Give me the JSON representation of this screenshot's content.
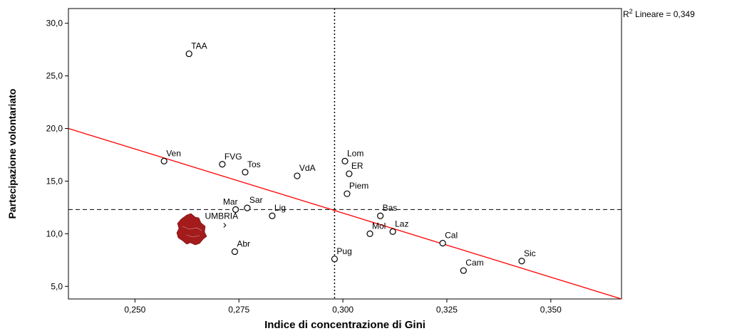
{
  "chart_data": {
    "type": "scatter",
    "xlabel": "Indice di concentrazione di Gini",
    "ylabel": "Partecipazione volontariato",
    "xlim": [
      0.234,
      0.367
    ],
    "ylim": [
      3.8,
      31.4
    ],
    "xticks": [
      0.25,
      0.275,
      0.3,
      0.325,
      0.35
    ],
    "xtick_labels": [
      "0,250",
      "0,275",
      "0,300",
      "0,325",
      "0,350"
    ],
    "yticks": [
      5,
      10,
      15,
      20,
      25,
      30
    ],
    "ytick_labels": [
      "5,0",
      "10,0",
      "15,0",
      "20,0",
      "25,0",
      "30,0"
    ],
    "grid": false,
    "points": [
      {
        "label": "TAA",
        "x": 0.263,
        "y": 27.1
      },
      {
        "label": "Ven",
        "x": 0.257,
        "y": 16.9
      },
      {
        "label": "FVG",
        "x": 0.271,
        "y": 16.6
      },
      {
        "label": "Tos",
        "x": 0.2765,
        "y": 15.85
      },
      {
        "label": "VdA",
        "x": 0.289,
        "y": 15.5
      },
      {
        "label": "Lom",
        "x": 0.3005,
        "y": 16.9
      },
      {
        "label": "ER",
        "x": 0.3015,
        "y": 15.7
      },
      {
        "label": "Piem",
        "x": 0.301,
        "y": 13.8
      },
      {
        "label": "Mar",
        "x": 0.2742,
        "y": 12.3
      },
      {
        "label": "Sar",
        "x": 0.277,
        "y": 12.45
      },
      {
        "label": "Lig",
        "x": 0.283,
        "y": 11.7
      },
      {
        "label": "Bas",
        "x": 0.309,
        "y": 11.7
      },
      {
        "label": "UMBRIA",
        "x": 0.2715,
        "y": 10.8
      },
      {
        "label": "Laz",
        "x": 0.312,
        "y": 10.2
      },
      {
        "label": "Mol",
        "x": 0.3065,
        "y": 10.0
      },
      {
        "label": "Cal",
        "x": 0.324,
        "y": 9.1
      },
      {
        "label": "Abr",
        "x": 0.274,
        "y": 8.3
      },
      {
        "label": "Pug",
        "x": 0.298,
        "y": 7.6
      },
      {
        "label": "Sic",
        "x": 0.343,
        "y": 7.4
      },
      {
        "label": "Cam",
        "x": 0.329,
        "y": 6.5
      }
    ],
    "fit_line": {
      "x1": 0.234,
      "y1": 20.0,
      "x2": 0.367,
      "y2": 3.8,
      "color": "#ff0000"
    },
    "r2_annotation": {
      "prefix": "R",
      "superscript": "2",
      "suffix": " Lineare = 0,349"
    },
    "reference_lines": {
      "vertical_x": 0.298,
      "horizontal_y": 12.3
    },
    "map_marker": {
      "region": "Umbria",
      "color": "#a31b1b"
    }
  }
}
